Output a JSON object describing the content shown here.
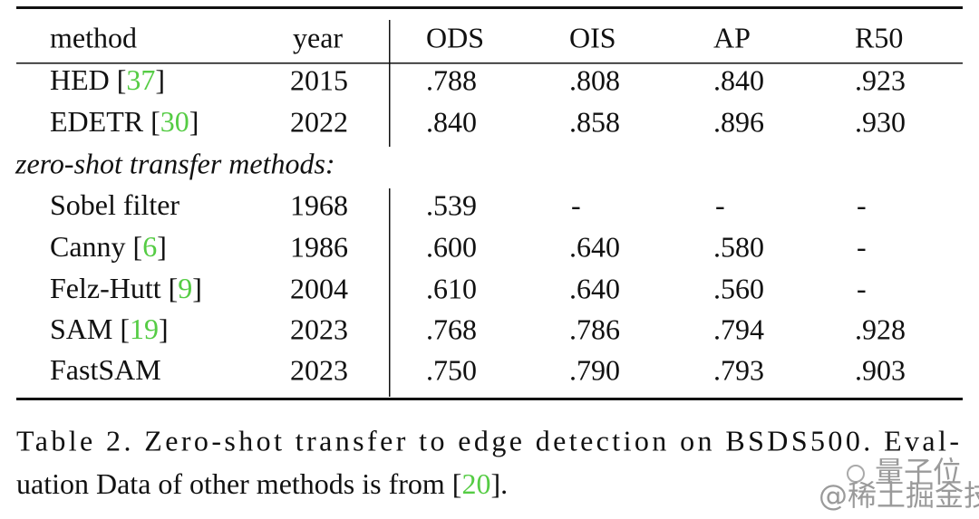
{
  "table": {
    "header": [
      "method",
      "year",
      "ODS",
      "OIS",
      "AP",
      "R50"
    ],
    "rows": [
      {
        "method": [
          "HED [",
          "37",
          "]"
        ],
        "year": "2015",
        "scores": [
          ".788",
          ".808",
          ".840",
          ".923"
        ]
      },
      {
        "method": [
          "EDETR [",
          "30",
          "]"
        ],
        "year": "2022",
        "scores": [
          ".840",
          ".858",
          ".896",
          ".930"
        ]
      }
    ],
    "zero_shot": {
      "label": "zero-shot transfer methods:",
      "rows": [
        {
          "method": [
            "Sobel filter"
          ],
          "year": "1968",
          "scores": [
            ".539",
            "-",
            "-",
            "-"
          ]
        },
        {
          "method": [
            "Canny [",
            "6",
            "]"
          ],
          "year": "1986",
          "scores": [
            ".600",
            ".640",
            ".580",
            "-"
          ]
        },
        {
          "method": [
            "Felz-Hutt [",
            "9",
            "]"
          ],
          "year": "2004",
          "scores": [
            ".610",
            ".640",
            ".560",
            "-"
          ]
        },
        {
          "method": [
            "SAM [",
            "19",
            "]"
          ],
          "year": "2023",
          "scores": [
            ".768",
            ".786",
            ".794",
            ".928"
          ]
        },
        {
          "method": [
            "FastSAM"
          ],
          "year": "2023",
          "scores": [
            ".750",
            ".790",
            ".793",
            ".903"
          ]
        }
      ]
    }
  },
  "caption": {
    "line1": "Table 2. Zero-shot transfer to edge detection on BSDS500. Eval-",
    "line2": [
      "uation Data of other methods is from [",
      "20",
      "]."
    ]
  },
  "watermark": {
    "brand": "量子位",
    "source": "@稀土掘金技术社区"
  }
}
